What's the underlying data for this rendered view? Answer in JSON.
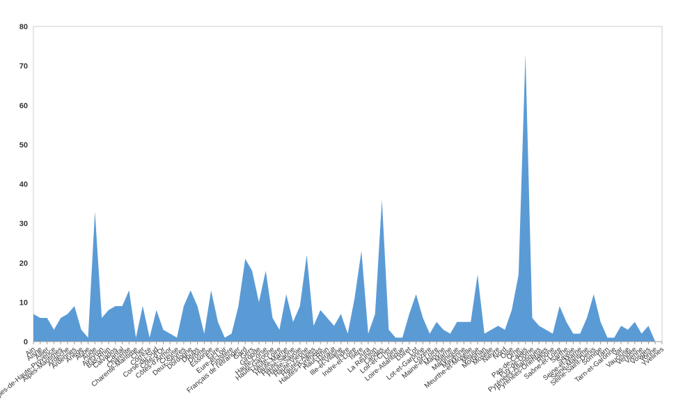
{
  "chart_data": {
    "type": "area",
    "title": "",
    "xlabel": "",
    "ylabel": "",
    "ylim": [
      0,
      80
    ],
    "yticks": [
      0,
      10,
      20,
      30,
      40,
      50,
      60,
      70,
      80
    ],
    "grid": false,
    "legend": "none",
    "fill_color": "#5b9bd5",
    "categories": [
      "Ain",
      "Aisne",
      "Allier",
      "Alpes-de-Haute-Provence",
      "Alpes-Maritimes",
      "Ardèche",
      "Ardennes",
      "Ariège",
      "Aube",
      "Aude",
      "Aveyron",
      "Bas-Rhin",
      "Calvados",
      "Cantal",
      "Charente",
      "Charente-Maritime",
      "Cher",
      "Corrèze",
      "Corse-du-Sud",
      "Côte-d'Or",
      "Côtes-d'Armor",
      "Creuse",
      "Deux-Sèvres",
      "Dordogne",
      "Doubs",
      "Drôme",
      "Essonne",
      "Eure",
      "Eure-et-Loir",
      "Finistère",
      "Français de l'étranger",
      "Gard",
      "Gers",
      "Gironde",
      "Haute-Corse",
      "Haute-Garonne",
      "Haute-Loire",
      "Haute-Marne",
      "Haute-Saône",
      "Haute-Savoie",
      "Haute-Vienne",
      "Hautes-Alpes",
      "Hautes-Pyrénées",
      "Haut-Rhin",
      "Hérault",
      "Ille-et-Vilaine",
      "Indre",
      "Indre-et-Loire",
      "Isère",
      "Jura",
      "La Réunion",
      "Landes",
      "Loir-et-Cher",
      "Loire",
      "Loire-Atlantique",
      "Loiret",
      "Lot",
      "Lot-et-Garonne",
      "Lozère",
      "Maine-et-Loire",
      "Manche",
      "Marne",
      "Martinique",
      "Mayenne",
      "Meurthe-et-Moselle",
      "Meuse",
      "Morbihan",
      "Moselle",
      "Nièvre",
      "Nord",
      "Oise",
      "Orne",
      "Pas-de-Calais",
      "Puy-de-Dôme",
      "Pyrénées-Atlantiques",
      "Pyrénées-Orientales",
      "Rhône",
      "Saône-et-Loire",
      "Sarthe",
      "Savoie",
      "Seine-et-Marne",
      "Seine-Maritime",
      "Seine-Saint-Denis",
      "Somme",
      "Tarn",
      "Tarn-et-Garonne",
      "Var",
      "Vaucluse",
      "Vendée",
      "Vienne",
      "Vosges",
      "Yonne",
      "Yvelines"
    ],
    "values": [
      7,
      6,
      6,
      3,
      6,
      7,
      9,
      3,
      1,
      33,
      6,
      8,
      9,
      9,
      13,
      1,
      9,
      1,
      8,
      3,
      2,
      1,
      9,
      13,
      9,
      2,
      13,
      5,
      1,
      2,
      9,
      21,
      18,
      10,
      18,
      6,
      3,
      12,
      5,
      9,
      22,
      4,
      8,
      6,
      4,
      7,
      2,
      11,
      23,
      2,
      7,
      36,
      3,
      1,
      1,
      7,
      12,
      6,
      2,
      5,
      3,
      2,
      5,
      5,
      5,
      17,
      2,
      3,
      4,
      3,
      8,
      17,
      73,
      6,
      4,
      3,
      2,
      9,
      5,
      2,
      2,
      6,
      12,
      5,
      1,
      1,
      4,
      3,
      5,
      2,
      4,
      0,
      0
    ]
  }
}
